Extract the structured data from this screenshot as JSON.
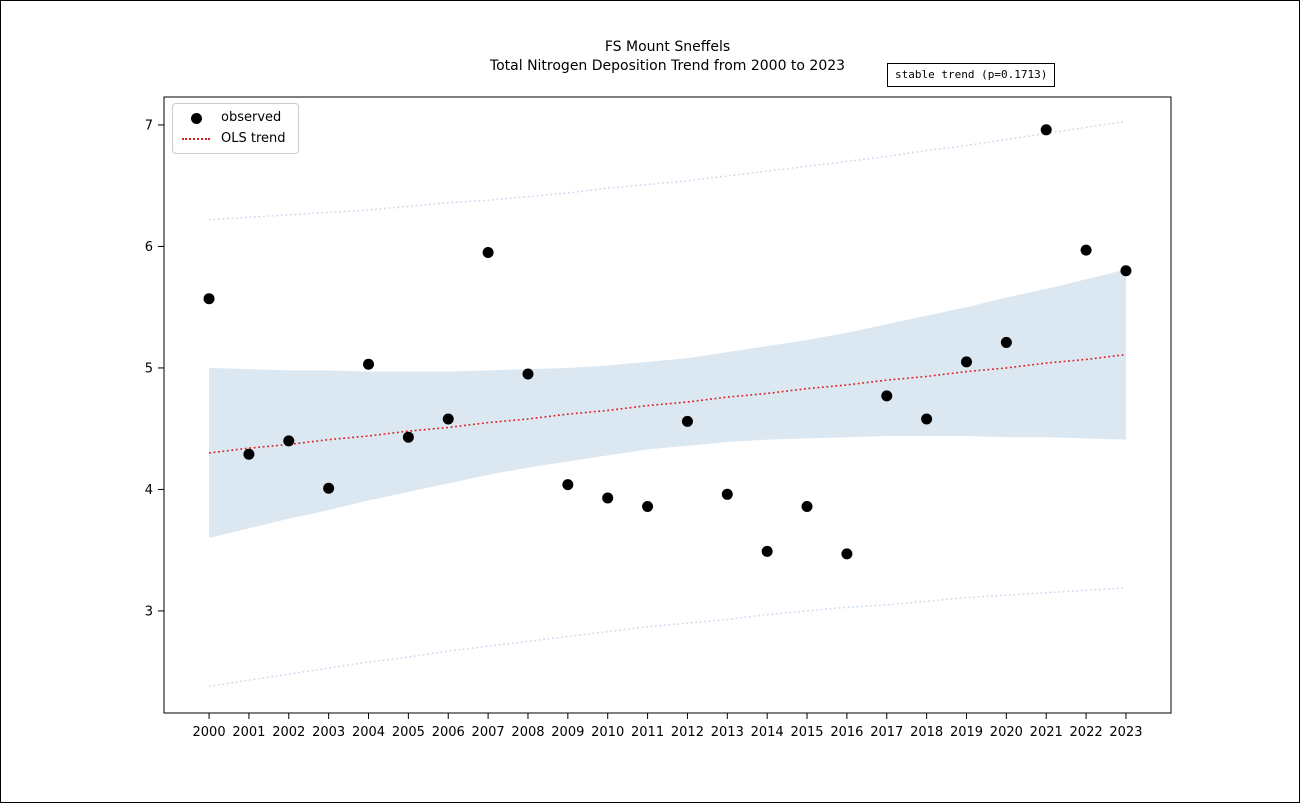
{
  "figure": {
    "title_line1": "FS Mount Sneffels",
    "title_line2": "Total Nitrogen Deposition Trend from 2000 to 2023",
    "annotation": "stable trend (p=0.1713)"
  },
  "legend": {
    "items": [
      {
        "label": "observed",
        "marker": "black-dot",
        "color": "#000000"
      },
      {
        "label": "OLS trend",
        "marker": "red-dotted-line",
        "color": "#dc1e1e"
      }
    ]
  },
  "colors": {
    "observed_point": "#000000",
    "trend_line": "#dc1e1e",
    "confidence_band": "#dbe7f1",
    "prediction_interval_line": "#bcd2e8",
    "axis": "#000000"
  },
  "chart_data": {
    "type": "scatter",
    "title": "FS Mount Sneffels",
    "subtitle": "Total Nitrogen Deposition Trend from 2000 to 2023",
    "annotation": "stable trend (p=0.1713)",
    "xlabel": "",
    "ylabel": "",
    "grid": false,
    "legend_position": "upper left",
    "x": [
      2000,
      2001,
      2002,
      2003,
      2004,
      2005,
      2006,
      2007,
      2008,
      2009,
      2010,
      2011,
      2012,
      2013,
      2014,
      2015,
      2016,
      2017,
      2018,
      2019,
      2020,
      2021,
      2022,
      2023
    ],
    "series": [
      {
        "name": "observed",
        "style": "scatter",
        "values": [
          5.57,
          4.29,
          4.4,
          4.01,
          5.03,
          4.43,
          4.58,
          5.95,
          4.95,
          4.04,
          3.93,
          3.86,
          4.56,
          3.96,
          3.49,
          3.86,
          3.47,
          4.77,
          4.58,
          5.05,
          5.21,
          6.96,
          5.97,
          5.8
        ]
      },
      {
        "name": "OLS trend",
        "style": "dotted-line",
        "values": [
          4.3,
          4.34,
          4.37,
          4.41,
          4.44,
          4.48,
          4.51,
          4.55,
          4.58,
          4.62,
          4.65,
          4.69,
          4.72,
          4.76,
          4.79,
          4.83,
          4.86,
          4.9,
          4.93,
          4.97,
          5.0,
          5.04,
          5.07,
          5.11
        ]
      },
      {
        "name": "confidence band upper",
        "style": "band-edge",
        "values": [
          5.0,
          4.99,
          4.98,
          4.98,
          4.97,
          4.97,
          4.97,
          4.98,
          4.99,
          5.0,
          5.02,
          5.05,
          5.08,
          5.13,
          5.18,
          5.23,
          5.29,
          5.36,
          5.43,
          5.5,
          5.58,
          5.65,
          5.73,
          5.81
        ]
      },
      {
        "name": "confidence band lower",
        "style": "band-edge",
        "values": [
          3.6,
          3.68,
          3.76,
          3.83,
          3.91,
          3.98,
          4.05,
          4.12,
          4.18,
          4.23,
          4.28,
          4.33,
          4.36,
          4.39,
          4.41,
          4.42,
          4.43,
          4.44,
          4.44,
          4.44,
          4.43,
          4.43,
          4.42,
          4.41
        ]
      },
      {
        "name": "prediction interval upper",
        "style": "light-dotted-line",
        "values": [
          6.22,
          6.24,
          6.26,
          6.28,
          6.3,
          6.33,
          6.36,
          6.38,
          6.41,
          6.44,
          6.48,
          6.51,
          6.54,
          6.58,
          6.62,
          6.66,
          6.7,
          6.74,
          6.79,
          6.83,
          6.88,
          6.93,
          6.98,
          7.03
        ]
      },
      {
        "name": "prediction interval lower",
        "style": "light-dotted-line",
        "values": [
          2.38,
          2.43,
          2.48,
          2.53,
          2.58,
          2.62,
          2.67,
          2.71,
          2.75,
          2.79,
          2.83,
          2.87,
          2.9,
          2.93,
          2.97,
          3.0,
          3.03,
          3.05,
          3.08,
          3.11,
          3.13,
          3.15,
          3.17,
          3.19
        ]
      }
    ],
    "xticks": [
      2000,
      2001,
      2002,
      2003,
      2004,
      2005,
      2006,
      2007,
      2008,
      2009,
      2010,
      2011,
      2012,
      2013,
      2014,
      2015,
      2016,
      2017,
      2018,
      2019,
      2020,
      2021,
      2022,
      2023
    ],
    "yticks": [
      3,
      4,
      5,
      6,
      7
    ],
    "xlim": [
      1998.87,
      2024.13
    ],
    "ylim": [
      2.16,
      7.23
    ]
  }
}
